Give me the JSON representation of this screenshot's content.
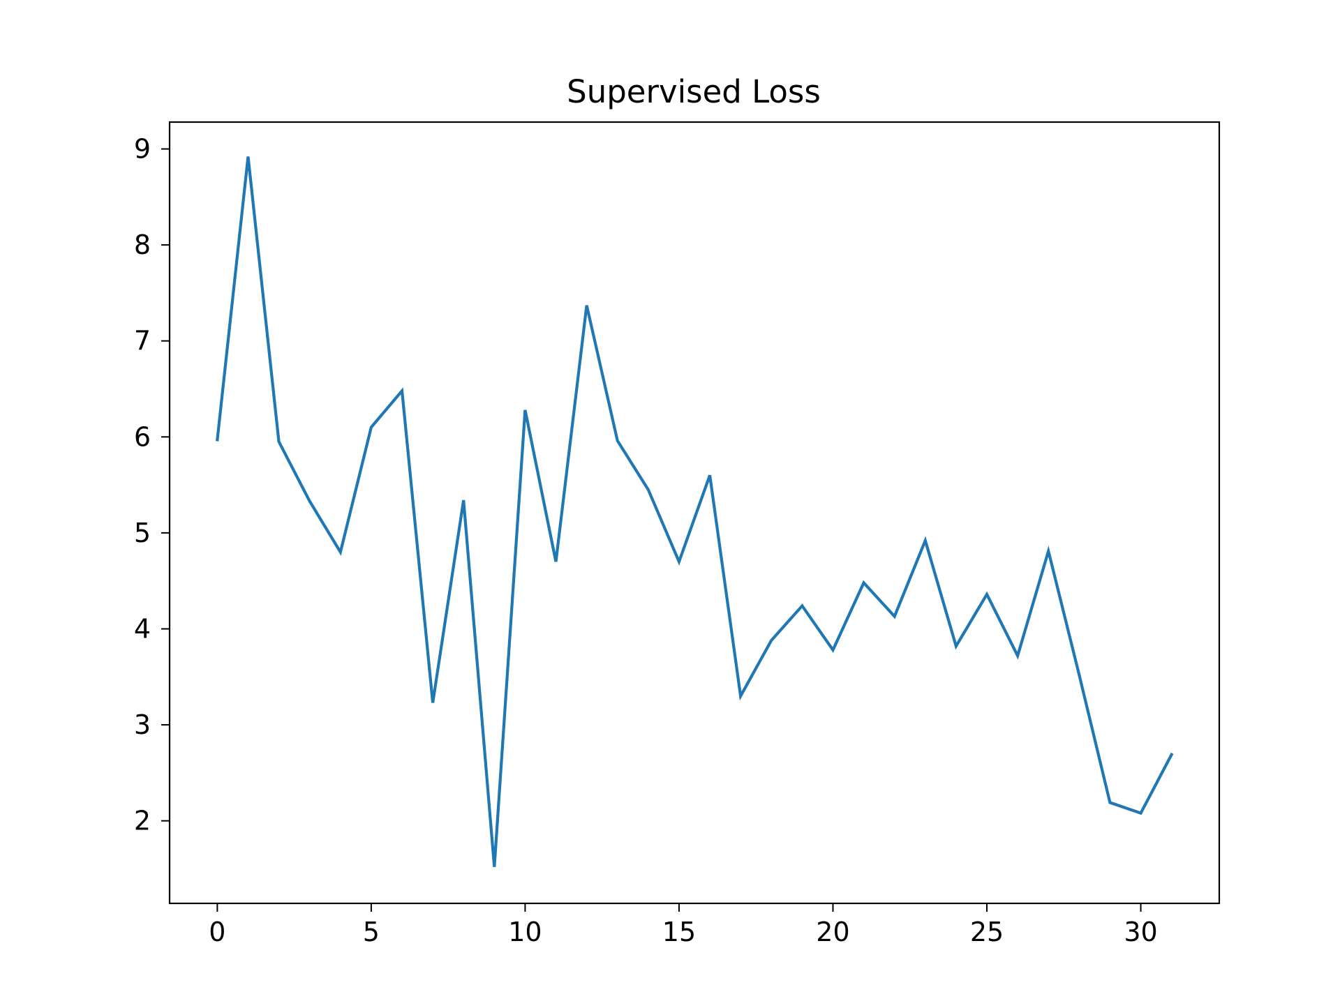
{
  "chart_data": {
    "type": "line",
    "title": "Supervised Loss",
    "xlabel": "",
    "ylabel": "",
    "xlim": [
      -1.55,
      32.55
    ],
    "ylim": [
      1.14,
      9.28
    ],
    "xticks": [
      0,
      5,
      10,
      15,
      20,
      25,
      30
    ],
    "yticks": [
      2,
      3,
      4,
      5,
      6,
      7,
      8,
      9
    ],
    "grid": false,
    "legend": "none",
    "line_color": "#1f77b4",
    "series": [
      {
        "x": [
          0,
          1,
          2,
          3,
          4,
          5,
          6,
          7,
          8,
          9,
          10,
          11,
          12,
          13,
          14,
          15,
          16,
          17,
          18,
          19,
          20,
          21,
          22,
          23,
          24,
          25,
          26,
          27,
          28,
          29,
          30,
          31
        ],
        "values": [
          5.97,
          8.92,
          5.95,
          5.33,
          4.8,
          6.1,
          6.48,
          3.23,
          5.34,
          1.52,
          6.28,
          4.7,
          7.37,
          5.96,
          5.45,
          4.7,
          5.6,
          3.3,
          3.88,
          4.24,
          3.78,
          4.48,
          4.13,
          4.92,
          3.82,
          4.36,
          3.72,
          4.81,
          3.52,
          2.19,
          2.08,
          2.69
        ]
      }
    ]
  }
}
